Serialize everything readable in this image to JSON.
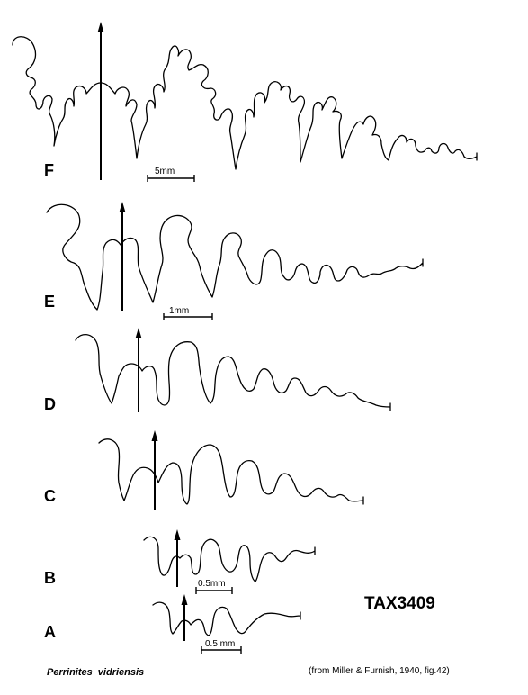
{
  "stages": [
    {
      "letter": "F"
    },
    {
      "letter": "E"
    },
    {
      "letter": "D"
    },
    {
      "letter": "C"
    },
    {
      "letter": "B"
    },
    {
      "letter": "A"
    }
  ],
  "scale_bars": [
    {
      "label": "5mm"
    },
    {
      "label": "1mm"
    },
    {
      "label": "0.5mm"
    },
    {
      "label": "0.5 mm"
    }
  ],
  "specimen_id": "TAX3409",
  "species": "Perrinites  vidriensis",
  "citation": "(from Miller & Furnish, 1940, fig.42)",
  "colors": {
    "ink": "#000000",
    "background": "#ffffff"
  }
}
